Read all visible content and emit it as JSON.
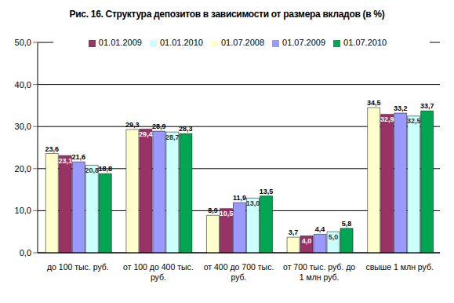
{
  "chart_data": {
    "type": "bar",
    "title": "Рис. 16. Структура депозитов в зависимости от размера вкладов (в %)",
    "categories": [
      "до 100 тыс. руб.",
      "от 100 до 400 тыс. руб.",
      "от 400 до 700 тыс. руб.",
      "от 700 тыс. руб. до 1 млн руб.",
      "свыше 1 млн руб."
    ],
    "series": [
      {
        "name": "01.07.2008",
        "color": "#ffffcc",
        "values": [
          23.6,
          29.3,
          8.9,
          3.7,
          34.5
        ],
        "value_labels": [
          "23,6",
          "29,3",
          "8,9",
          "3,7",
          "34,5"
        ]
      },
      {
        "name": "01.01.2009",
        "color": "#993366",
        "values": [
          23.1,
          29.4,
          10.5,
          4.0,
          32.9
        ],
        "value_labels": [
          "23,1",
          "29,4",
          "10,5",
          "4,0",
          "32,9"
        ]
      },
      {
        "name": "01.07.2009",
        "color": "#9999ff",
        "values": [
          21.6,
          28.9,
          11.9,
          4.4,
          33.2
        ],
        "value_labels": [
          "21,6",
          "28,9",
          "11,9",
          "4,4",
          "33,2"
        ]
      },
      {
        "name": "01.01.2010",
        "color": "#ccffff",
        "values": [
          20.8,
          28.7,
          13.0,
          5.0,
          32.5
        ],
        "value_labels": [
          "20,8",
          "28,7",
          "13,0",
          "5,0",
          "32,5"
        ]
      },
      {
        "name": "01.07.2010",
        "color": "#00a651",
        "values": [
          18.8,
          28.3,
          13.5,
          5.8,
          33.7
        ],
        "value_labels": [
          "18,8",
          "28,3",
          "13,5",
          "5,8",
          "33,7"
        ]
      }
    ],
    "ylim": [
      0,
      50
    ],
    "yticks": [
      {
        "value": 0,
        "label": "0,0"
      },
      {
        "value": 10,
        "label": "10,0"
      },
      {
        "value": 20,
        "label": "20,0"
      },
      {
        "value": 30,
        "label": "30,0"
      },
      {
        "value": 40,
        "label": "40,0"
      },
      {
        "value": 50,
        "label": "50,0"
      }
    ],
    "grid": true,
    "legend": "top",
    "data_labels": true
  }
}
